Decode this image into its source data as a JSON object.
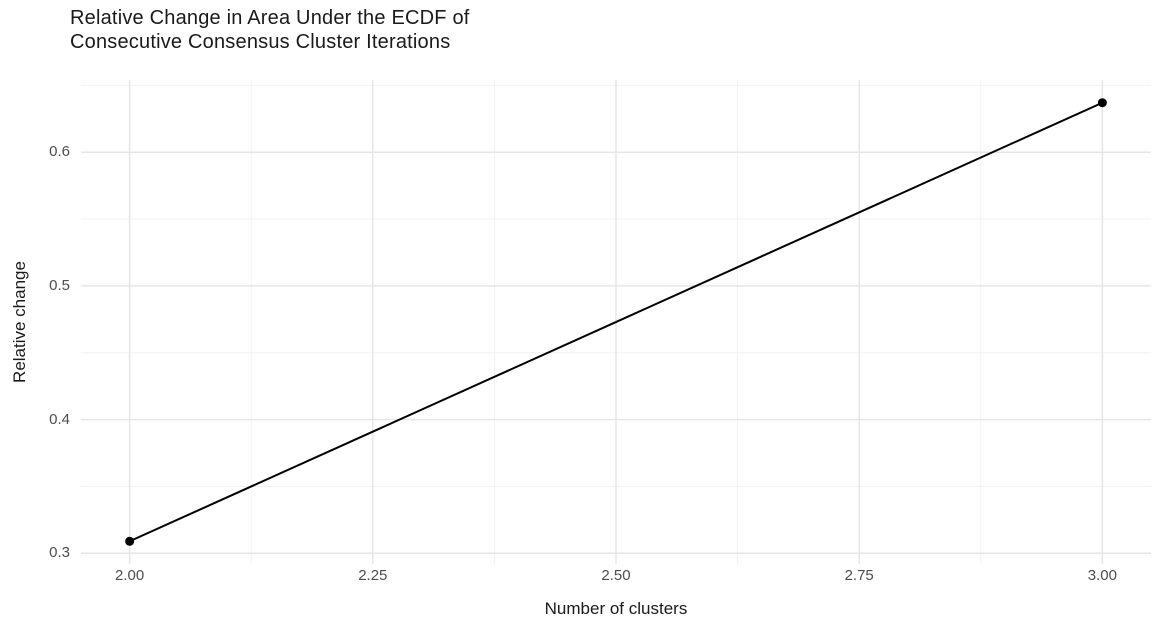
{
  "title": {
    "line1": "Relative Change in Area Under the ECDF of",
    "line2": "Consecutive Consensus Cluster Iterations"
  },
  "chart_data": {
    "type": "line",
    "title": "Relative Change in Area Under the ECDF of Consecutive Consensus Cluster Iterations",
    "xlabel": "Number of clusters",
    "ylabel": "Relative change",
    "x": [
      2,
      3
    ],
    "y": [
      0.309,
      0.637
    ],
    "xlim": [
      1.95,
      3.05
    ],
    "ylim": [
      0.292,
      0.654
    ],
    "x_ticks": [
      2.0,
      2.25,
      2.5,
      2.75,
      3.0
    ],
    "x_tick_labels": [
      "2.00",
      "2.25",
      "2.50",
      "2.75",
      "3.00"
    ],
    "y_ticks": [
      0.3,
      0.4,
      0.5,
      0.6
    ],
    "y_tick_labels": [
      "0.3",
      "0.4",
      "0.5",
      "0.6"
    ],
    "x_minor": [
      2.125,
      2.375,
      2.625,
      2.875
    ],
    "y_minor": [
      0.35,
      0.45,
      0.55,
      0.65
    ],
    "grid": true,
    "legend": "none",
    "colors": {
      "background": "#ffffff",
      "grid_major": "#e6e6e6",
      "grid_minor": "#f2f2f2",
      "line": "#000000",
      "point": "#000000",
      "tick_label": "#4d4d4d",
      "axis_title": "#1a1a1a",
      "title": "#1a1a1a"
    }
  }
}
